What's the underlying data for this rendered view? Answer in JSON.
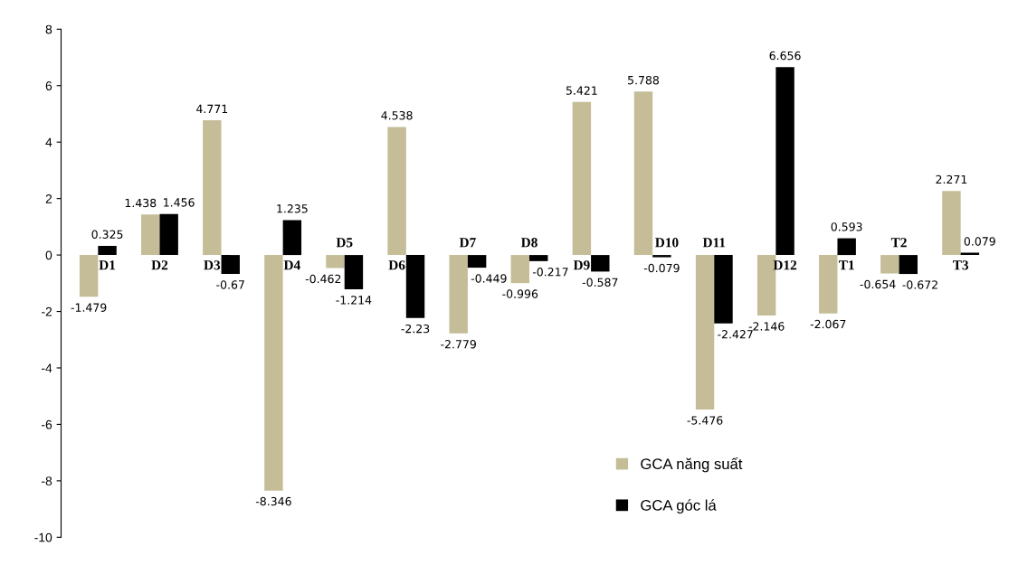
{
  "chart_data": {
    "type": "bar",
    "categories": [
      "D1",
      "D2",
      "D3",
      "D4",
      "D5",
      "D6",
      "D7",
      "D8",
      "D9",
      "D10",
      "D11",
      "D12",
      "T1",
      "T2",
      "T3"
    ],
    "series": [
      {
        "name": "GCA năng suất",
        "color": "#c4bd97",
        "values": [
          -1.479,
          1.438,
          4.771,
          -8.346,
          -0.462,
          4.538,
          -2.779,
          -0.996,
          5.421,
          5.788,
          -5.476,
          -2.146,
          -2.067,
          -0.654,
          2.271
        ]
      },
      {
        "name": "GCA góc lá",
        "color": "#000000",
        "values": [
          0.325,
          1.456,
          -0.67,
          1.235,
          -1.214,
          -2.23,
          -0.449,
          -0.217,
          -0.587,
          -0.079,
          -2.427,
          6.656,
          0.593,
          -0.672,
          0.079
        ]
      }
    ],
    "ylim": [
      -10,
      8
    ],
    "yticks": [
      -10,
      -8,
      -6,
      -4,
      -2,
      0,
      2,
      4,
      6,
      8
    ],
    "data_labels": true,
    "grid": false,
    "legend": "bottom"
  }
}
